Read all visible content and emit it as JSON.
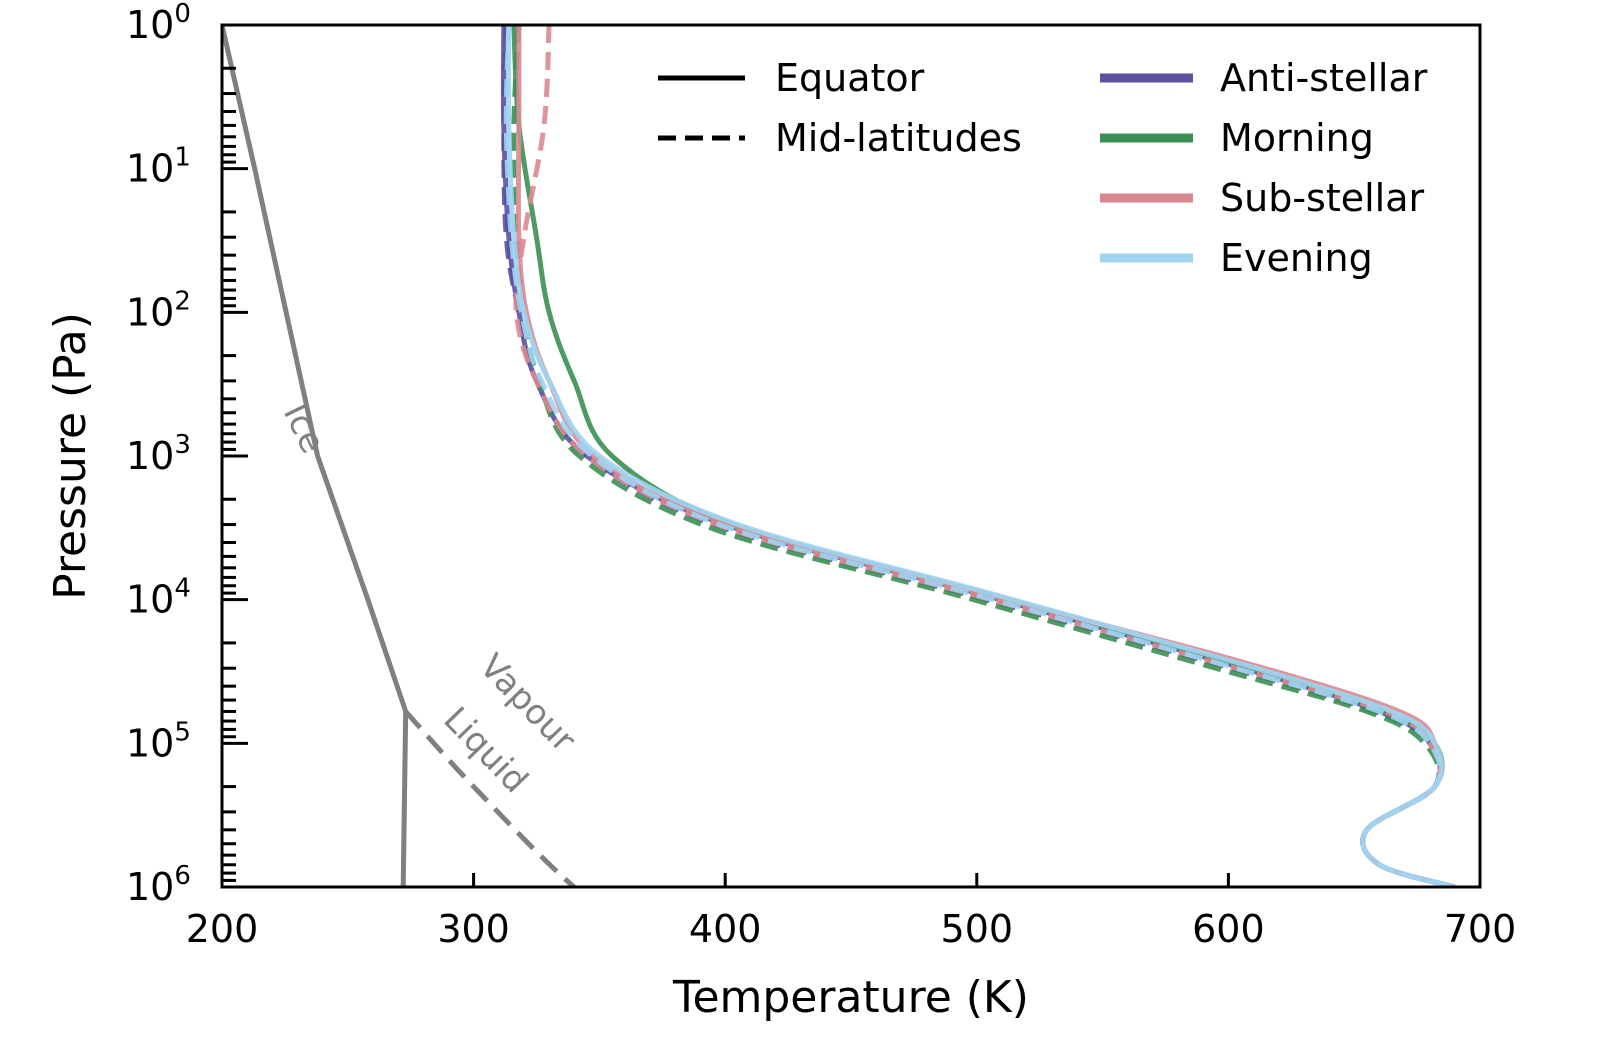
{
  "chart_data": {
    "type": "line",
    "title": "",
    "xlabel": "Temperature (K)",
    "ylabel": "Pressure (Pa)",
    "xlim": [
      200,
      700
    ],
    "ylim_log10": [
      0,
      6
    ],
    "y_scale": "log",
    "y_inverted": true,
    "grid": false,
    "legend_placement": "top-right",
    "x_ticks": [
      200,
      300,
      400,
      500,
      600,
      700
    ],
    "x_tick_labels": [
      "200",
      "300",
      "400",
      "500",
      "600",
      "700"
    ],
    "y_ticks": [
      1,
      10,
      100,
      1000,
      10000,
      100000,
      1000000
    ],
    "y_tick_labels": [
      {
        "base": "10",
        "exp": "0"
      },
      {
        "base": "10",
        "exp": "1"
      },
      {
        "base": "10",
        "exp": "2"
      },
      {
        "base": "10",
        "exp": "3"
      },
      {
        "base": "10",
        "exp": "4"
      },
      {
        "base": "10",
        "exp": "5"
      },
      {
        "base": "10",
        "exp": "6"
      }
    ],
    "legend": {
      "styles": [
        {
          "label": "Equator",
          "dash": "solid"
        },
        {
          "label": "Mid-latitudes",
          "dash": "dashed"
        }
      ],
      "colors": [
        {
          "label": "Anti-stellar",
          "color": "#5b4fa0"
        },
        {
          "label": "Morning",
          "color": "#3a8f54"
        },
        {
          "label": "Sub-stellar",
          "color": "#d98890"
        },
        {
          "label": "Evening",
          "color": "#9fd4f2"
        }
      ]
    },
    "phase_boundaries": {
      "color": "#808080",
      "labels": {
        "ice": "Ice",
        "vapour": "Vapour",
        "liquid": "Liquid"
      },
      "ice_vapour": {
        "x": [
          200,
          213,
          238,
          258,
          273
        ],
        "y": [
          1,
          10,
          1000,
          10000,
          60000
        ]
      },
      "ice_liquid": {
        "x": [
          273,
          272,
          270
        ],
        "y": [
          60000,
          1000000,
          5000000
        ]
      },
      "liquid_vapour": {
        "x": [
          273,
          300,
          340,
          368
        ],
        "y": [
          60000,
          200000,
          1000000,
          2000000
        ]
      }
    },
    "series": [
      {
        "name": "Anti-stellar",
        "style": "Equator",
        "color": "#5b4fa0",
        "dash": "solid",
        "x": [
          312,
          312,
          314,
          318,
          325,
          345,
          400,
          500,
          600,
          660,
          680,
          682,
          655,
          660,
          690
        ],
        "y": [
          1,
          5,
          30,
          100,
          300,
          1000,
          3000,
          9000,
          28000,
          60000,
          100000,
          200000,
          400000,
          700000,
          1000000
        ]
      },
      {
        "name": "Anti-stellar",
        "style": "Mid-latitudes",
        "color": "#5b4fa0",
        "dash": "dashed",
        "x": [
          313,
          312,
          313,
          318,
          325,
          345,
          398,
          497,
          598,
          658,
          680,
          682,
          655,
          660,
          690
        ],
        "y": [
          1,
          5,
          30,
          100,
          300,
          1000,
          3100,
          9300,
          29000,
          60000,
          100000,
          200000,
          400000,
          700000,
          1000000
        ]
      },
      {
        "name": "Morning",
        "style": "Equator",
        "color": "#3a8f54",
        "dash": "solid",
        "x": [
          316,
          318,
          325,
          330,
          340,
          355,
          403,
          503,
          603,
          662,
          682,
          682,
          655,
          660,
          690
        ],
        "y": [
          1,
          5,
          30,
          100,
          300,
          1000,
          3000,
          9000,
          28000,
          60000,
          100000,
          200000,
          400000,
          700000,
          1000000
        ]
      },
      {
        "name": "Morning",
        "style": "Mid-latitudes",
        "color": "#3a8f54",
        "dash": "dashed",
        "x": [
          318,
          316,
          317,
          320,
          326,
          342,
          395,
          495,
          595,
          655,
          678,
          682,
          655,
          660,
          690
        ],
        "y": [
          1,
          5,
          30,
          100,
          300,
          1000,
          3200,
          9600,
          30000,
          60000,
          100000,
          200000,
          400000,
          700000,
          1000000
        ]
      },
      {
        "name": "Sub-stellar",
        "style": "Equator",
        "color": "#d98890",
        "dash": "solid",
        "x": [
          318,
          318,
          318,
          321,
          330,
          348,
          402,
          502,
          605,
          668,
          682,
          682,
          655,
          660,
          690
        ],
        "y": [
          1,
          5,
          30,
          100,
          300,
          1000,
          3000,
          9000,
          27000,
          60000,
          100000,
          200000,
          400000,
          700000,
          1000000
        ]
      },
      {
        "name": "Sub-stellar",
        "style": "Mid-latitudes",
        "color": "#d98890",
        "dash": "dashed",
        "x": [
          330,
          328,
          320,
          317,
          325,
          345,
          399,
          499,
          600,
          662,
          680,
          682,
          655,
          660,
          690
        ],
        "y": [
          1,
          5,
          30,
          100,
          300,
          1000,
          3100,
          9300,
          29000,
          60000,
          100000,
          200000,
          400000,
          700000,
          1000000
        ]
      },
      {
        "name": "Evening",
        "style": "Equator",
        "color": "#9fd4f2",
        "dash": "solid",
        "x": [
          314,
          314,
          316,
          320,
          330,
          350,
          405,
          505,
          605,
          665,
          682,
          682,
          655,
          660,
          690
        ],
        "y": [
          1,
          5,
          30,
          100,
          300,
          1000,
          3000,
          9000,
          28000,
          60000,
          100000,
          200000,
          400000,
          700000,
          1000000
        ]
      },
      {
        "name": "Evening",
        "style": "Mid-latitudes",
        "color": "#9fd4f2",
        "dash": "dashed",
        "x": [
          314,
          313,
          315,
          319,
          327,
          347,
          400,
          500,
          600,
          660,
          680,
          682,
          655,
          660,
          690
        ],
        "y": [
          1,
          5,
          30,
          100,
          300,
          1000,
          3100,
          9300,
          29000,
          60000,
          100000,
          200000,
          400000,
          700000,
          1000000
        ]
      }
    ]
  }
}
